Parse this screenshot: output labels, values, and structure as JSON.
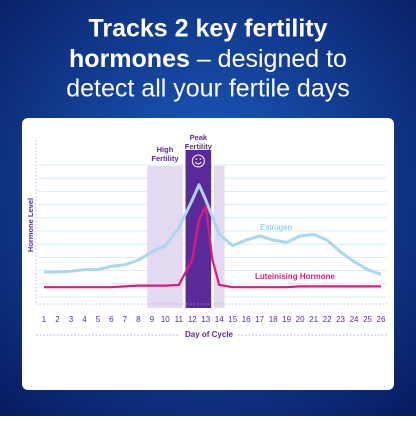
{
  "header": {
    "title_bold_1": "Tracks 2 key fertility",
    "title_bold_2": "hormones",
    "title_rest_2": " – designed to",
    "title_line_3": "detect all your fertile days"
  },
  "chart_data": {
    "type": "line",
    "x_label": "Day of Cycle",
    "y_label": "Hormone Level",
    "xlim": [
      1,
      26
    ],
    "ylim": [
      0,
      100
    ],
    "xticks": [
      1,
      2,
      3,
      4,
      5,
      6,
      7,
      8,
      9,
      10,
      11,
      12,
      13,
      14,
      15,
      16,
      17,
      18,
      19,
      20,
      21,
      22,
      23,
      24,
      25,
      26
    ],
    "phases": [
      {
        "lines": [
          "High",
          "Fertility"
        ],
        "start": 8.65,
        "end": 11.3,
        "color": "#e3d9f0"
      },
      {
        "lines": [
          "Peak",
          "Fertility"
        ],
        "start": 11.5,
        "end": 13.4,
        "color": "#5b2a9a"
      },
      {
        "start": 13.6,
        "end": 14.4,
        "color": "#e3d9f0"
      }
    ],
    "series": [
      {
        "name": "Estrogen",
        "color": "#a9d8ef",
        "x": [
          1,
          2,
          3,
          4,
          5,
          6,
          7,
          8,
          9,
          10,
          11,
          12,
          12.5,
          13,
          14,
          15,
          16,
          17,
          18,
          19,
          20,
          21,
          22,
          23,
          24,
          25,
          26
        ],
        "values": [
          17.5,
          17.5,
          18,
          19,
          19,
          21,
          22,
          25,
          30,
          34,
          45,
          62.5,
          72,
          62.5,
          41,
          34,
          37.5,
          40,
          37.5,
          36,
          40,
          41,
          37.5,
          30,
          24,
          19,
          16
        ]
      },
      {
        "name": "Luteinising Hormone",
        "color": "#e0197d",
        "x": [
          1,
          2,
          3,
          4,
          5,
          6,
          7,
          8,
          9,
          10,
          11,
          12,
          12.5,
          13,
          13.5,
          14,
          15,
          16,
          17,
          18,
          19,
          20,
          21,
          22,
          23,
          24,
          25,
          26
        ],
        "values": [
          8,
          8,
          8,
          8,
          8,
          8,
          8.5,
          9,
          9,
          9,
          9.4,
          25,
          50,
          59,
          25,
          9.4,
          8,
          8,
          8,
          8,
          8,
          8.5,
          8.5,
          8.5,
          8.5,
          8.5,
          8.5,
          8.5
        ]
      }
    ]
  }
}
